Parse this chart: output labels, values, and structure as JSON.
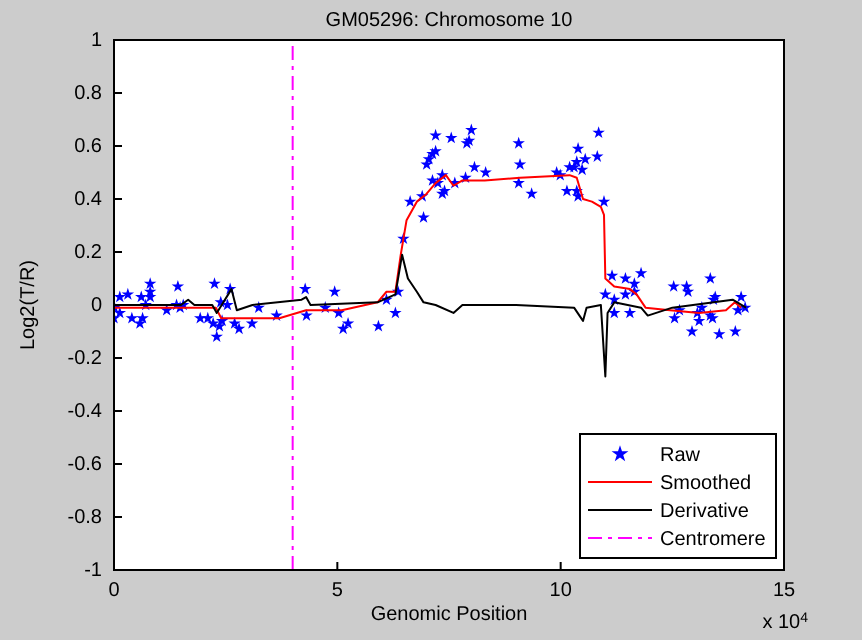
{
  "chart_data": {
    "type": "line",
    "title": "GM05296: Chromosome 10",
    "xlabel": "Genomic Position",
    "ylabel": "Log2(T/R)",
    "annotations": [
      "x 10$^{4}$"
    ],
    "xlim": [
      0,
      15
    ],
    "xticks": [
      0,
      5,
      10,
      15
    ],
    "ylim": [
      -1,
      1
    ],
    "yticks": [
      -1,
      -0.8,
      -0.6,
      -0.4,
      -0.2,
      0,
      0.2,
      0.4,
      0.6,
      0.8,
      1
    ],
    "grid": false,
    "legend": "bottom right",
    "series": [
      {
        "name": "Raw",
        "type": "scatter",
        "marker": "star",
        "color": "#0000ff",
        "x": [
          0.0,
          0.01,
          0.13,
          0.13,
          0.31,
          0.4,
          0.58,
          0.64,
          0.61,
          0.81,
          0.81,
          0.81,
          0.71,
          1.18,
          1.4,
          1.43,
          1.48,
          1.55,
          1.93,
          2.1,
          2.25,
          2.22,
          2.3,
          2.36,
          2.42,
          2.39,
          2.54,
          2.6,
          2.7,
          2.8,
          3.09,
          3.24,
          3.64,
          4.28,
          4.31,
          4.73,
          4.94,
          5.03,
          5.13,
          5.24,
          5.92,
          6.1,
          6.3,
          6.36,
          6.48,
          6.63,
          6.93,
          6.9,
          7.0,
          7.05,
          7.13,
          7.2,
          7.2,
          7.13,
          7.25,
          7.35,
          7.35,
          7.4,
          7.55,
          7.63,
          7.9,
          8.0,
          7.95,
          7.87,
          8.07,
          8.32,
          9.06,
          9.09,
          9.06,
          9.35,
          9.91,
          9.99,
          10.14,
          10.2,
          10.3,
          10.36,
          10.39,
          10.36,
          10.39,
          10.48,
          10.55,
          10.82,
          10.85,
          10.97,
          11.15,
          11.0,
          11.2,
          11.2,
          11.45,
          11.45,
          11.55,
          11.65,
          11.65,
          11.8,
          12.53,
          12.55,
          12.66,
          12.82,
          12.85,
          12.94,
          13.06,
          13.1,
          13.16,
          13.35,
          13.35,
          13.4,
          13.42,
          13.46,
          13.55,
          13.91,
          13.97,
          14.04,
          14.13
        ],
        "values": [
          -0.05,
          -0.01,
          0.03,
          -0.03,
          0.04,
          -0.05,
          -0.07,
          -0.05,
          0.03,
          0.08,
          0.05,
          0.03,
          0.0,
          -0.02,
          0.0,
          0.07,
          -0.01,
          0.0,
          -0.05,
          -0.05,
          0.08,
          -0.07,
          -0.12,
          -0.08,
          -0.06,
          0.01,
          0.0,
          0.06,
          -0.07,
          -0.09,
          -0.07,
          -0.01,
          -0.04,
          0.06,
          -0.04,
          -0.01,
          0.05,
          -0.03,
          -0.09,
          -0.07,
          -0.08,
          0.02,
          -0.03,
          0.05,
          0.25,
          0.39,
          0.33,
          0.41,
          0.53,
          0.55,
          0.57,
          0.58,
          0.64,
          0.47,
          0.46,
          0.49,
          0.42,
          0.43,
          0.63,
          0.46,
          0.61,
          0.66,
          0.62,
          0.48,
          0.52,
          0.5,
          0.61,
          0.53,
          0.46,
          0.42,
          0.5,
          0.49,
          0.43,
          0.52,
          0.52,
          0.54,
          0.59,
          0.43,
          0.41,
          0.51,
          0.55,
          0.56,
          0.65,
          0.39,
          0.11,
          0.04,
          -0.03,
          0.02,
          0.1,
          0.04,
          -0.03,
          0.08,
          0.05,
          0.12,
          0.07,
          -0.05,
          -0.02,
          0.07,
          0.05,
          -0.1,
          -0.03,
          -0.06,
          -0.01,
          0.1,
          -0.04,
          -0.05,
          0.02,
          0.03,
          -0.11,
          -0.1,
          -0.02,
          0.03,
          -0.01
        ]
      },
      {
        "name": "Smoothed",
        "color": "#ff0000",
        "x": [
          0,
          1.0,
          2.28,
          2.4,
          3.7,
          4.3,
          5.1,
          5.9,
          6.1,
          6.3,
          6.42,
          6.55,
          6.78,
          7.0,
          7.2,
          7.43,
          7.6,
          7.8,
          8.3,
          9.09,
          10.2,
          10.36,
          10.5,
          10.7,
          10.9,
          10.97,
          11.0,
          11.2,
          11.55,
          11.7,
          11.9,
          12.45,
          13.1,
          13.7,
          13.9,
          14.04
        ],
        "values": [
          -0.01,
          -0.01,
          -0.01,
          -0.05,
          -0.05,
          -0.02,
          -0.02,
          0.01,
          0.05,
          0.05,
          0.19,
          0.32,
          0.39,
          0.42,
          0.46,
          0.49,
          0.45,
          0.47,
          0.47,
          0.48,
          0.49,
          0.48,
          0.4,
          0.39,
          0.37,
          0.34,
          0.1,
          0.07,
          0.06,
          0.04,
          -0.01,
          -0.02,
          -0.03,
          -0.02,
          0.01,
          -0.01
        ]
      },
      {
        "name": "Derivative",
        "color": "#000000",
        "x": [
          0,
          1.5,
          1.66,
          1.8,
          2.2,
          2.3,
          2.63,
          2.75,
          3.1,
          4.2,
          4.3,
          4.4,
          5.9,
          6.3,
          6.45,
          6.58,
          6.78,
          6.93,
          7.2,
          7.6,
          7.8,
          9.0,
          10.3,
          10.5,
          10.58,
          10.9,
          11.0,
          11.05,
          11.2,
          11.8,
          11.95,
          12.5,
          13.85,
          14.15
        ],
        "values": [
          0.0,
          0.0,
          0.02,
          0.0,
          0.0,
          -0.03,
          0.06,
          -0.02,
          0.0,
          0.02,
          0.03,
          0.0,
          0.01,
          0.04,
          0.19,
          0.1,
          0.05,
          0.01,
          0.0,
          -0.03,
          0.0,
          0.0,
          -0.01,
          -0.06,
          -0.01,
          0.0,
          -0.27,
          -0.03,
          0.01,
          -0.01,
          -0.04,
          -0.01,
          0.02,
          -0.01
        ]
      },
      {
        "name": "Centromere",
        "line_style": "dashed",
        "color": "#ff00ff",
        "x": [
          4,
          4
        ],
        "values": [
          -1,
          1
        ]
      }
    ]
  }
}
